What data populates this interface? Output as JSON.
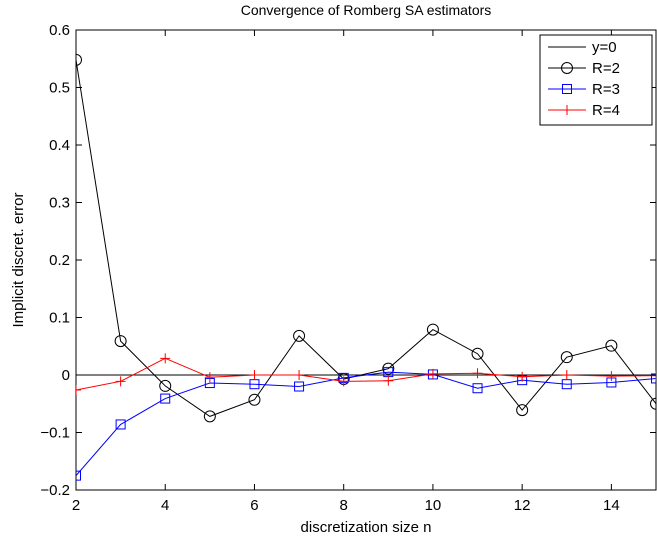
{
  "chart_data": {
    "type": "line",
    "title": "Convergence of Romberg SA estimators",
    "xlabel": "discretization size n",
    "ylabel": "Implicit discret. error",
    "xlim": [
      2,
      15
    ],
    "ylim": [
      -0.2,
      0.6
    ],
    "xticks": [
      "2",
      "4",
      "6",
      "8",
      "10",
      "12",
      "14"
    ],
    "yticks": [
      "−0.2",
      "−0.1",
      "0",
      "0.1",
      "0.2",
      "0.3",
      "0.4",
      "0.5",
      "0.6"
    ],
    "grid": false,
    "legend_position": "top-right",
    "series": [
      {
        "name": "y=0",
        "color": "#000000",
        "marker": "none",
        "x": [
          2,
          15
        ],
        "values": [
          0,
          0
        ]
      },
      {
        "name": "R=2",
        "color": "#000000",
        "marker": "circle",
        "x": [
          2,
          3,
          4,
          5,
          6,
          7,
          8,
          9,
          10,
          11,
          12,
          13,
          14,
          15
        ],
        "values": [
          0.548,
          0.059,
          -0.019,
          -0.072,
          -0.043,
          0.068,
          -0.007,
          0.011,
          0.079,
          0.037,
          -0.061,
          0.031,
          0.051,
          -0.05
        ]
      },
      {
        "name": "R=3",
        "color": "#0000ff",
        "marker": "square",
        "x": [
          2,
          3,
          4,
          5,
          6,
          7,
          8,
          9,
          10,
          11,
          12,
          13,
          14,
          15
        ],
        "values": [
          -0.175,
          -0.086,
          -0.041,
          -0.014,
          -0.016,
          -0.02,
          -0.005,
          0.005,
          0.001,
          -0.023,
          -0.009,
          -0.016,
          -0.013,
          -0.006
        ]
      },
      {
        "name": "R=4",
        "color": "#ff0000",
        "marker": "plus",
        "x": [
          2,
          3,
          4,
          5,
          6,
          7,
          8,
          9,
          10,
          11,
          12,
          13,
          14,
          15
        ],
        "values": [
          -0.026,
          -0.011,
          0.029,
          -0.004,
          0.0,
          0.0,
          -0.011,
          -0.01,
          0.002,
          0.003,
          -0.003,
          0.0,
          -0.002,
          -0.001
        ]
      }
    ]
  }
}
